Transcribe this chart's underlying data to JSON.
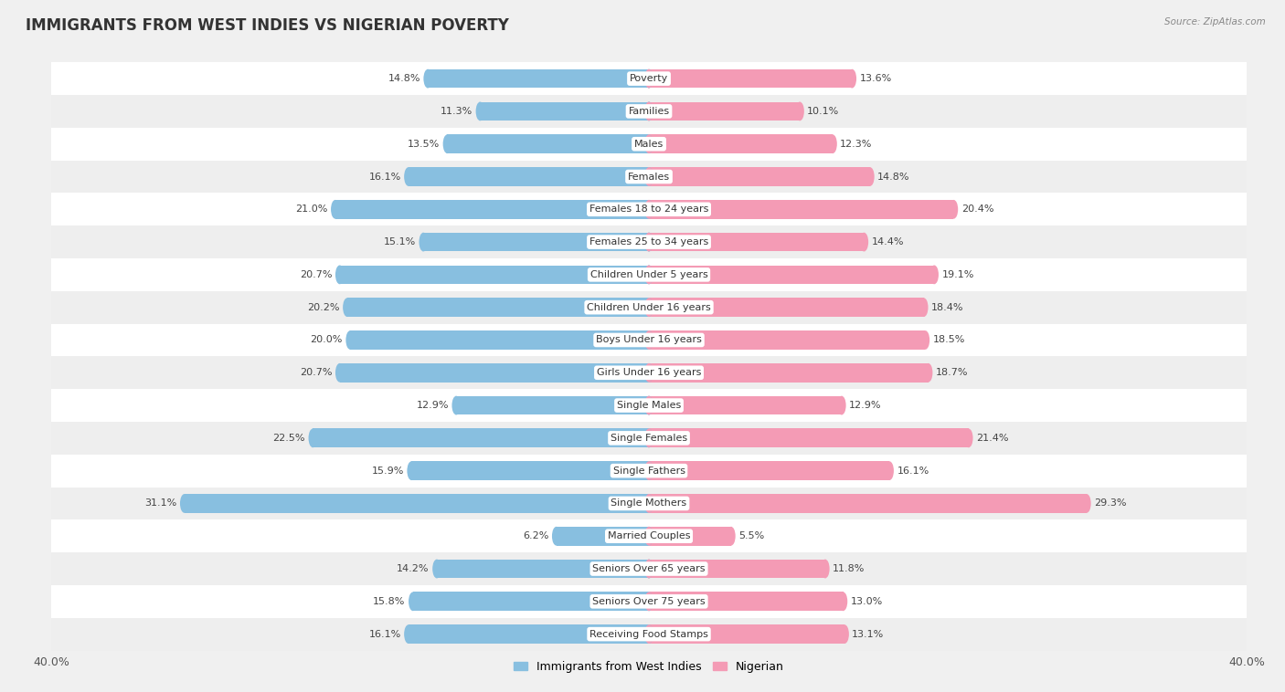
{
  "title": "IMMIGRANTS FROM WEST INDIES VS NIGERIAN POVERTY",
  "source": "Source: ZipAtlas.com",
  "categories": [
    "Poverty",
    "Families",
    "Males",
    "Females",
    "Females 18 to 24 years",
    "Females 25 to 34 years",
    "Children Under 5 years",
    "Children Under 16 years",
    "Boys Under 16 years",
    "Girls Under 16 years",
    "Single Males",
    "Single Females",
    "Single Fathers",
    "Single Mothers",
    "Married Couples",
    "Seniors Over 65 years",
    "Seniors Over 75 years",
    "Receiving Food Stamps"
  ],
  "west_indies": [
    14.8,
    11.3,
    13.5,
    16.1,
    21.0,
    15.1,
    20.7,
    20.2,
    20.0,
    20.7,
    12.9,
    22.5,
    15.9,
    31.1,
    6.2,
    14.2,
    15.8,
    16.1
  ],
  "nigerian": [
    13.6,
    10.1,
    12.3,
    14.8,
    20.4,
    14.4,
    19.1,
    18.4,
    18.5,
    18.7,
    12.9,
    21.4,
    16.1,
    29.3,
    5.5,
    11.8,
    13.0,
    13.1
  ],
  "west_indies_color": "#88BFE0",
  "nigerian_color": "#F49BB5",
  "row_color_even": "#FFFFFF",
  "row_color_odd": "#EEEEEE",
  "background_color": "#F0F0F0",
  "axis_limit": 40.0,
  "bar_height": 0.58,
  "label_fontsize": 8.0,
  "value_fontsize": 8.0,
  "title_fontsize": 12,
  "legend_labels": [
    "Immigrants from West Indies",
    "Nigerian"
  ]
}
